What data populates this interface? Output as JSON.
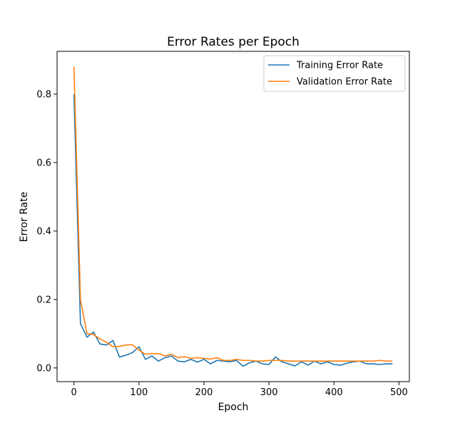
{
  "chart_data": {
    "type": "line",
    "title": "Error Rates per Epoch",
    "xlabel": "Epoch",
    "ylabel": "Error Rate",
    "xlim": [
      -26,
      516
    ],
    "ylim": [
      -0.04,
      0.925
    ],
    "xticks": [
      0,
      100,
      200,
      300,
      400,
      500
    ],
    "yticks": [
      0.0,
      0.2,
      0.4,
      0.6,
      0.8
    ],
    "ytick_labels": [
      "0.0",
      "0.2",
      "0.4",
      "0.6",
      "0.8"
    ],
    "grid": false,
    "legend_position": "upper right",
    "x": [
      0,
      10,
      20,
      30,
      40,
      50,
      60,
      70,
      80,
      90,
      100,
      110,
      120,
      130,
      140,
      150,
      160,
      170,
      180,
      190,
      200,
      210,
      220,
      230,
      240,
      250,
      260,
      270,
      280,
      290,
      300,
      310,
      320,
      330,
      340,
      350,
      360,
      370,
      380,
      390,
      400,
      410,
      420,
      430,
      440,
      450,
      460,
      470,
      480,
      490
    ],
    "series": [
      {
        "name": "Training Error Rate",
        "color": "#1f77b4",
        "values": [
          0.8,
          0.13,
          0.09,
          0.105,
          0.07,
          0.067,
          0.08,
          0.032,
          0.037,
          0.045,
          0.062,
          0.025,
          0.035,
          0.02,
          0.03,
          0.035,
          0.02,
          0.018,
          0.025,
          0.017,
          0.025,
          0.012,
          0.022,
          0.02,
          0.018,
          0.022,
          0.005,
          0.015,
          0.02,
          0.012,
          0.01,
          0.032,
          0.018,
          0.012,
          0.006,
          0.018,
          0.008,
          0.02,
          0.012,
          0.018,
          0.01,
          0.008,
          0.014,
          0.018,
          0.02,
          0.012,
          0.012,
          0.01,
          0.012,
          0.012
        ]
      },
      {
        "name": "Validation Error Rate",
        "color": "#ff7f0e",
        "values": [
          0.88,
          0.2,
          0.1,
          0.098,
          0.085,
          0.075,
          0.062,
          0.063,
          0.067,
          0.068,
          0.052,
          0.04,
          0.042,
          0.042,
          0.035,
          0.04,
          0.03,
          0.033,
          0.028,
          0.03,
          0.028,
          0.026,
          0.03,
          0.022,
          0.022,
          0.025,
          0.022,
          0.022,
          0.02,
          0.02,
          0.022,
          0.022,
          0.022,
          0.02,
          0.02,
          0.02,
          0.02,
          0.02,
          0.02,
          0.02,
          0.02,
          0.02,
          0.02,
          0.02,
          0.02,
          0.02,
          0.02,
          0.022,
          0.02,
          0.02
        ]
      }
    ]
  }
}
